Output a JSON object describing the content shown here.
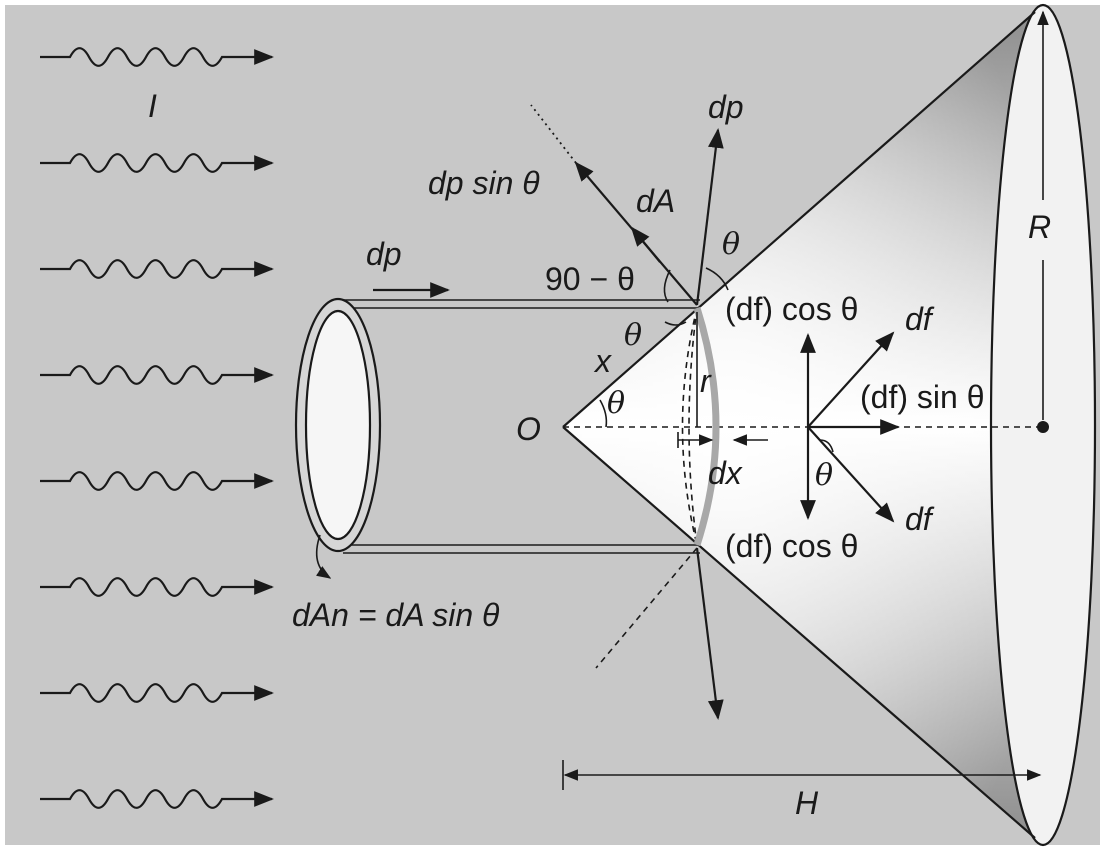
{
  "labels": {
    "intensity": "I",
    "dp_top": "dp",
    "dp_sin": "dp sin θ",
    "dA": "dA",
    "theta": "θ",
    "ninety_minus": "90 − θ",
    "dp_beam": "dp",
    "df_cos_top": "(df) cos θ",
    "df_top": "df",
    "x": "x",
    "r": "r",
    "O": "O",
    "df_sin": "(df) sin θ",
    "dx": "dx",
    "df_cos_bottom": "(df) cos θ",
    "df_bottom": "df",
    "dAn": "dAn = dA sin θ",
    "R": "R",
    "H": "H"
  },
  "colors": {
    "background": "#c8c8c8",
    "stroke": "#1a1a1a",
    "cone_light": "#ffffff",
    "cone_dark": "#8f8f8f"
  }
}
